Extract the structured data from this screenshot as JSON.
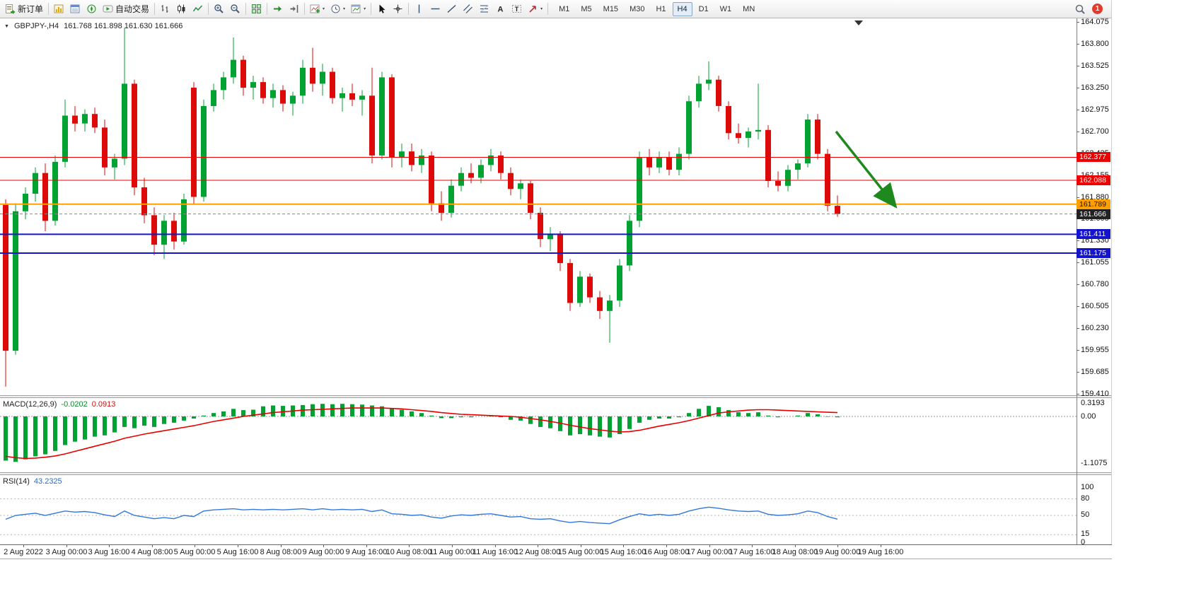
{
  "toolbar": {
    "new_order": "新订单",
    "autotrading": "自动交易",
    "timeframes": [
      "M1",
      "M5",
      "M15",
      "M30",
      "H1",
      "H4",
      "D1",
      "W1",
      "MN"
    ],
    "active_timeframe": "H4",
    "notification_badge": "1"
  },
  "chart_header": {
    "symbol_period": "GBPJPY-,H4",
    "ohlc": "161.768 161.898 161.630 161.666"
  },
  "macd_panel": {
    "label": "MACD(12,26,9)",
    "main_value": "-0.0202",
    "signal_value": "0.0913",
    "axis_labels": [
      "0.3193",
      "0.00",
      "-1.1075"
    ],
    "axis_values": [
      0.3193,
      0,
      -1.1075
    ]
  },
  "rsi_panel": {
    "label": "RSI(14)",
    "value": "43.2325",
    "axis_labels": [
      "100",
      "80",
      "50",
      "15",
      "0"
    ],
    "axis_values": [
      100,
      80,
      50,
      15,
      0
    ],
    "levels": [
      80,
      50,
      15
    ]
  },
  "price_axis_labels": [
    "164.075",
    "163.800",
    "163.525",
    "163.250",
    "162.975",
    "162.700",
    "162.425",
    "162.155",
    "161.880",
    "161.605",
    "161.330",
    "161.055",
    "160.780",
    "160.505",
    "160.230",
    "159.955",
    "159.685",
    "159.410"
  ],
  "time_axis_labels": [
    "2 Aug 2022",
    "3 Aug 00:00",
    "3 Aug 16:00",
    "4 Aug 08:00",
    "5 Aug 00:00",
    "5 Aug 16:00",
    "8 Aug 08:00",
    "9 Aug 00:00",
    "9 Aug 16:00",
    "10 Aug 08:00",
    "11 Aug 00:00",
    "11 Aug 16:00",
    "12 Aug 08:00",
    "15 Aug 00:00",
    "15 Aug 16:00",
    "16 Aug 08:00",
    "17 Aug 00:00",
    "17 Aug 16:00",
    "18 Aug 08:00",
    "19 Aug 00:00",
    "19 Aug 16:00"
  ],
  "price_lines": [
    {
      "label": "162.377",
      "value": 162.377,
      "color": "#ee0000",
      "width": 1,
      "dashed": false
    },
    {
      "label": "162.088",
      "value": 162.088,
      "color": "#ee0000",
      "width": 1,
      "dashed": false
    },
    {
      "label": "161.789",
      "value": 161.789,
      "color": "#ffa000",
      "width": 2,
      "dashed": false
    },
    {
      "label": "161.666",
      "value": 161.666,
      "color": "#222222",
      "line_color": "#888888",
      "width": 1,
      "dashed": true
    },
    {
      "label": "161.411",
      "value": 161.411,
      "color": "#1414cc",
      "width": 2,
      "dashed": false
    },
    {
      "label": "161.175",
      "value": 161.175,
      "color": "#1414cc",
      "width": 2,
      "dashed": false
    }
  ],
  "colors": {
    "bull": "#00a332",
    "bear": "#dd0a0a",
    "macd_hist": "#00a332",
    "macd_signal": "#e80000",
    "rsi": "#3377dd",
    "arrow": "#1e8a1e"
  },
  "chart_data": {
    "type": "candlestick",
    "symbol": "GBPJPY-",
    "timeframe": "H4",
    "ylim": [
      159.41,
      164.075
    ],
    "candles": [
      [
        161.78,
        161.85,
        159.5,
        159.95
      ],
      [
        159.95,
        161.8,
        159.9,
        161.7
      ],
      [
        161.7,
        162.0,
        161.6,
        161.92
      ],
      [
        161.92,
        162.25,
        161.82,
        162.18
      ],
      [
        162.18,
        162.3,
        161.45,
        161.58
      ],
      [
        161.58,
        162.4,
        161.52,
        162.32
      ],
      [
        162.32,
        163.1,
        162.25,
        162.9
      ],
      [
        162.9,
        163.02,
        162.7,
        162.8
      ],
      [
        162.8,
        162.98,
        162.7,
        162.92
      ],
      [
        162.92,
        163.0,
        162.68,
        162.75
      ],
      [
        162.75,
        162.85,
        162.15,
        162.25
      ],
      [
        162.25,
        162.42,
        162.1,
        162.36
      ],
      [
        162.36,
        164.0,
        162.28,
        163.3
      ],
      [
        163.3,
        163.35,
        161.9,
        162.0
      ],
      [
        162.0,
        162.12,
        161.55,
        161.65
      ],
      [
        161.65,
        161.75,
        161.15,
        161.28
      ],
      [
        161.28,
        161.65,
        161.1,
        161.58
      ],
      [
        161.58,
        161.68,
        161.22,
        161.32
      ],
      [
        161.32,
        161.92,
        161.28,
        161.85
      ],
      [
        163.25,
        163.32,
        161.78,
        161.88
      ],
      [
        161.88,
        163.1,
        161.82,
        163.02
      ],
      [
        163.02,
        163.3,
        162.95,
        163.22
      ],
      [
        163.22,
        163.45,
        163.1,
        163.38
      ],
      [
        163.38,
        163.88,
        163.3,
        163.6
      ],
      [
        163.6,
        163.65,
        163.15,
        163.25
      ],
      [
        163.25,
        163.4,
        163.1,
        163.32
      ],
      [
        163.32,
        163.38,
        163.05,
        163.12
      ],
      [
        163.12,
        163.3,
        163.0,
        163.22
      ],
      [
        163.22,
        163.28,
        162.95,
        163.05
      ],
      [
        163.05,
        163.2,
        162.9,
        163.15
      ],
      [
        163.15,
        163.6,
        163.05,
        163.5
      ],
      [
        163.5,
        163.75,
        163.2,
        163.3
      ],
      [
        163.3,
        163.55,
        163.15,
        163.45
      ],
      [
        163.45,
        163.5,
        163.05,
        163.12
      ],
      [
        163.12,
        163.25,
        162.95,
        163.18
      ],
      [
        163.18,
        163.3,
        163.02,
        163.1
      ],
      [
        163.1,
        163.22,
        162.9,
        163.15
      ],
      [
        163.15,
        163.5,
        162.3,
        162.4
      ],
      [
        162.4,
        163.45,
        162.35,
        163.38
      ],
      [
        163.38,
        163.42,
        162.25,
        162.38
      ],
      [
        162.38,
        162.55,
        162.25,
        162.45
      ],
      [
        162.45,
        162.55,
        162.2,
        162.28
      ],
      [
        162.28,
        162.48,
        162.18,
        162.4
      ],
      [
        162.4,
        162.45,
        161.7,
        161.8
      ],
      [
        161.8,
        161.95,
        161.58,
        161.68
      ],
      [
        161.68,
        162.1,
        161.62,
        162.02
      ],
      [
        162.02,
        162.25,
        161.95,
        162.18
      ],
      [
        162.18,
        162.3,
        162.05,
        162.12
      ],
      [
        162.12,
        162.35,
        162.05,
        162.28
      ],
      [
        162.28,
        162.48,
        162.2,
        162.4
      ],
      [
        162.4,
        162.45,
        162.1,
        162.18
      ],
      [
        162.18,
        162.25,
        161.9,
        161.98
      ],
      [
        161.98,
        162.1,
        161.85,
        162.05
      ],
      [
        162.05,
        162.08,
        161.6,
        161.68
      ],
      [
        161.68,
        161.75,
        161.25,
        161.35
      ],
      [
        161.35,
        161.5,
        161.2,
        161.42
      ],
      [
        161.42,
        161.45,
        160.95,
        161.05
      ],
      [
        161.05,
        161.1,
        160.45,
        160.55
      ],
      [
        160.55,
        160.95,
        160.5,
        160.88
      ],
      [
        160.88,
        160.92,
        160.55,
        160.62
      ],
      [
        160.62,
        160.7,
        160.35,
        160.45
      ],
      [
        160.45,
        160.65,
        160.05,
        160.58
      ],
      [
        160.58,
        161.1,
        160.5,
        161.02
      ],
      [
        161.02,
        161.65,
        160.95,
        161.58
      ],
      [
        161.58,
        162.45,
        161.5,
        162.38
      ],
      [
        162.38,
        162.48,
        162.15,
        162.25
      ],
      [
        162.25,
        162.45,
        162.18,
        162.38
      ],
      [
        162.38,
        162.45,
        162.15,
        162.22
      ],
      [
        162.22,
        162.5,
        162.15,
        162.42
      ],
      [
        162.42,
        163.15,
        162.35,
        163.08
      ],
      [
        163.08,
        163.4,
        163.0,
        163.3
      ],
      [
        163.3,
        163.58,
        163.22,
        163.35
      ],
      [
        163.35,
        163.4,
        162.95,
        163.02
      ],
      [
        163.02,
        163.08,
        162.6,
        162.68
      ],
      [
        162.68,
        162.8,
        162.55,
        162.62
      ],
      [
        162.62,
        162.75,
        162.5,
        162.7
      ],
      [
        162.7,
        163.3,
        162.6,
        162.72
      ],
      [
        162.72,
        162.78,
        162.0,
        162.08
      ],
      [
        162.08,
        162.2,
        161.95,
        162.02
      ],
      [
        162.02,
        162.28,
        161.95,
        162.22
      ],
      [
        162.22,
        162.35,
        162.1,
        162.3
      ],
      [
        162.3,
        162.92,
        162.25,
        162.85
      ],
      [
        162.85,
        162.92,
        162.35,
        162.42
      ],
      [
        162.42,
        162.48,
        161.7,
        161.77
      ],
      [
        161.768,
        161.898,
        161.63,
        161.666
      ]
    ],
    "macd": {
      "histogram": [
        -1.05,
        -1.08,
        -1.02,
        -0.95,
        -0.9,
        -0.82,
        -0.68,
        -0.6,
        -0.55,
        -0.48,
        -0.45,
        -0.38,
        -0.25,
        -0.28,
        -0.22,
        -0.25,
        -0.18,
        -0.15,
        -0.1,
        -0.05,
        0.02,
        0.08,
        0.12,
        0.18,
        0.15,
        0.16,
        0.24,
        0.26,
        0.25,
        0.26,
        0.27,
        0.29,
        0.3,
        0.29,
        0.3,
        0.29,
        0.28,
        0.26,
        0.24,
        0.2,
        0.16,
        0.12,
        0.08,
        0.02,
        -0.04,
        -0.04,
        -0.02,
        -0.02,
        0.0,
        0.02,
        -0.02,
        -0.08,
        -0.1,
        -0.18,
        -0.25,
        -0.28,
        -0.35,
        -0.45,
        -0.42,
        -0.45,
        -0.48,
        -0.5,
        -0.42,
        -0.3,
        -0.15,
        -0.08,
        -0.05,
        -0.05,
        -0.02,
        0.08,
        0.18,
        0.25,
        0.22,
        0.15,
        0.1,
        0.08,
        0.1,
        0.02,
        -0.02,
        0.0,
        0.02,
        0.08,
        0.05,
        -0.01,
        -0.0202
      ],
      "signal": [
        -0.95,
        -0.98,
        -1.0,
        -0.99,
        -0.97,
        -0.94,
        -0.89,
        -0.83,
        -0.77,
        -0.71,
        -0.65,
        -0.59,
        -0.52,
        -0.47,
        -0.42,
        -0.38,
        -0.34,
        -0.3,
        -0.26,
        -0.22,
        -0.17,
        -0.12,
        -0.08,
        -0.04,
        0.0,
        0.03,
        0.06,
        0.09,
        0.11,
        0.13,
        0.15,
        0.16,
        0.17,
        0.18,
        0.19,
        0.2,
        0.2,
        0.2,
        0.2,
        0.19,
        0.18,
        0.16,
        0.14,
        0.12,
        0.09,
        0.07,
        0.05,
        0.04,
        0.03,
        0.02,
        0.01,
        0.0,
        -0.02,
        -0.05,
        -0.08,
        -0.12,
        -0.16,
        -0.21,
        -0.25,
        -0.29,
        -0.32,
        -0.35,
        -0.37,
        -0.36,
        -0.33,
        -0.28,
        -0.23,
        -0.19,
        -0.15,
        -0.1,
        -0.04,
        0.02,
        0.08,
        0.11,
        0.13,
        0.15,
        0.16,
        0.16,
        0.15,
        0.14,
        0.13,
        0.12,
        0.11,
        0.1,
        0.0913
      ]
    },
    "rsi": {
      "values": [
        43,
        50,
        52,
        54,
        50,
        54,
        58,
        56,
        57,
        55,
        51,
        48,
        58,
        50,
        47,
        44,
        46,
        44,
        50,
        48,
        58,
        60,
        61,
        62,
        60,
        61,
        60,
        61,
        60,
        61,
        62,
        60,
        62,
        60,
        61,
        60,
        61,
        57,
        60,
        53,
        52,
        50,
        51,
        47,
        45,
        49,
        51,
        50,
        52,
        53,
        50,
        47,
        48,
        44,
        43,
        44,
        40,
        37,
        39,
        37,
        36,
        35,
        42,
        48,
        53,
        50,
        52,
        50,
        52,
        58,
        62,
        65,
        63,
        60,
        58,
        57,
        58,
        52,
        50,
        51,
        53,
        58,
        55,
        48,
        43.23
      ]
    },
    "annotations": [
      {
        "type": "trend-arrow",
        "from": [
          1182,
          186
        ],
        "to": [
          1263,
          288
        ]
      }
    ]
  }
}
